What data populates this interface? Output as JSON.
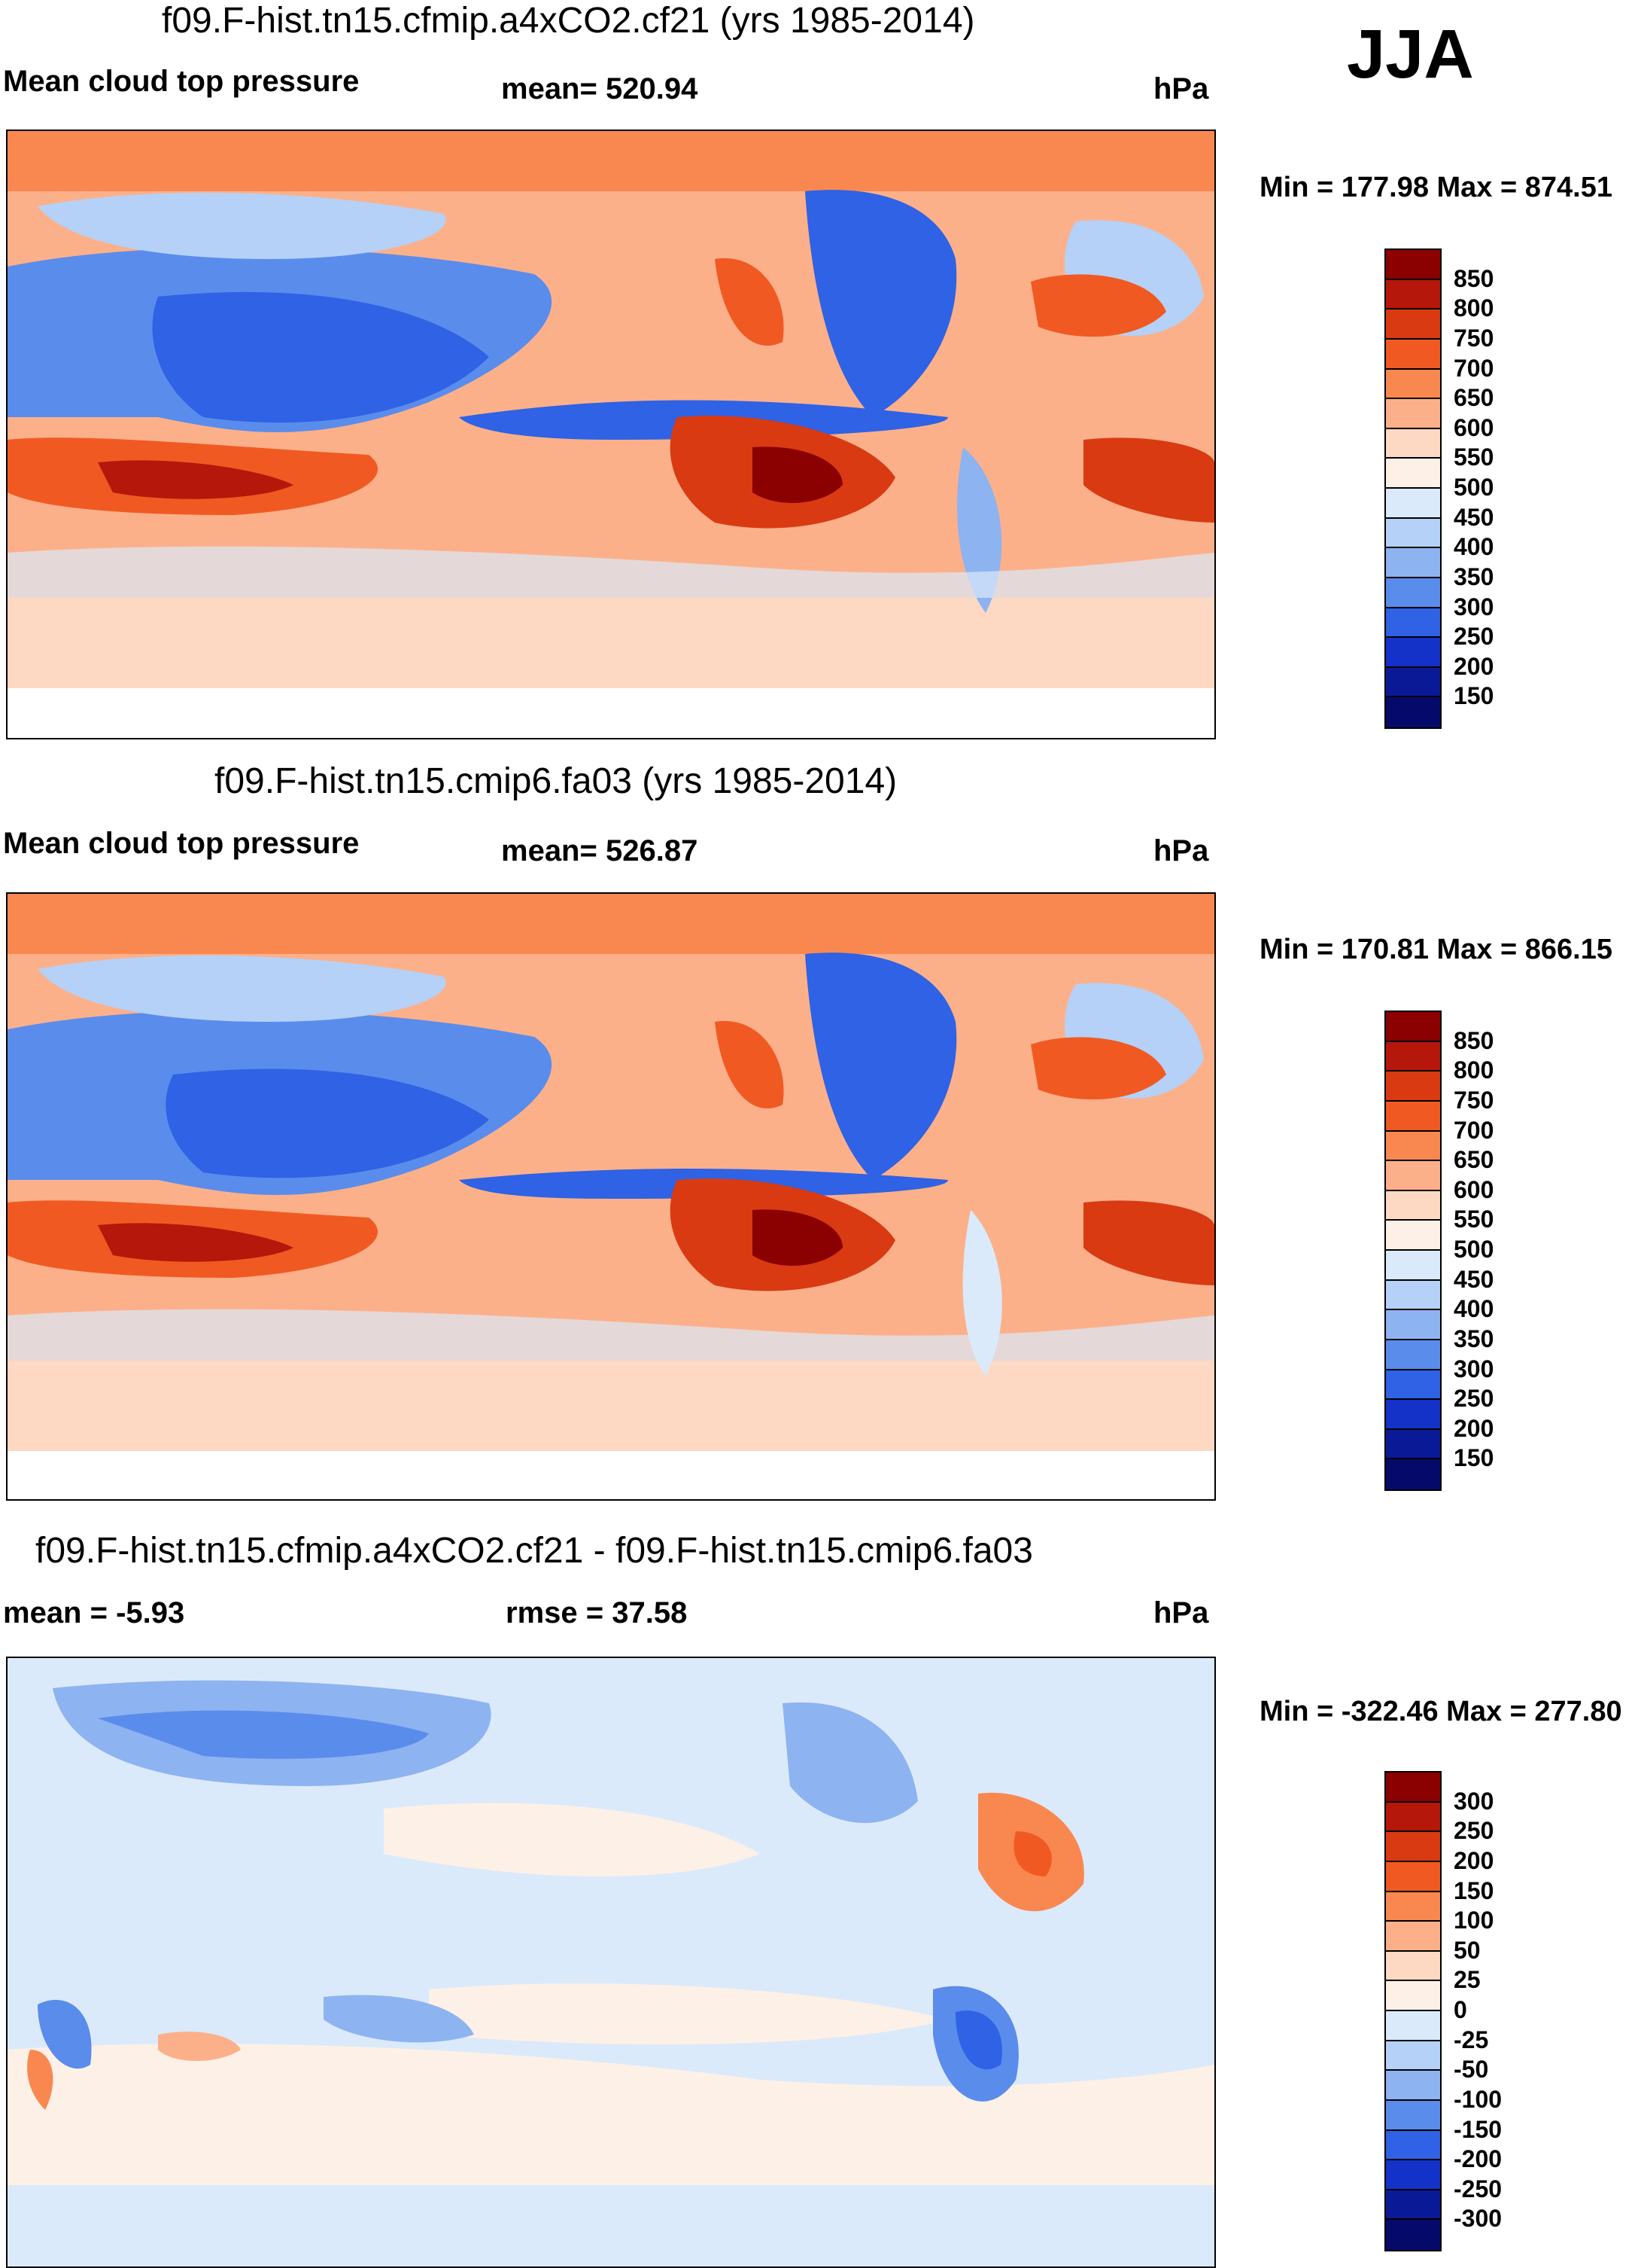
{
  "season": "JJA",
  "panels": [
    {
      "title": "f09.F-hist.tn15.cfmip.a4xCO2.cf21 (yrs 1985-2014)",
      "left": "Mean cloud top pressure",
      "center": "mean= 520.94",
      "units": "hPa",
      "minmax": "Min = 177.98 Max = 874.51",
      "legend": {
        "labels": [
          "850",
          "800",
          "750",
          "700",
          "650",
          "600",
          "550",
          "500",
          "450",
          "400",
          "350",
          "300",
          "250",
          "200",
          "150"
        ],
        "colors": [
          "#8b0000",
          "#b5170a",
          "#d93a12",
          "#f05a22",
          "#f98850",
          "#fcb08a",
          "#fdd8c2",
          "#fdf0e6",
          "#dbeafb",
          "#b5d1f7",
          "#8db3f1",
          "#5a8cec",
          "#2f62e4",
          "#1432c8",
          "#0a1a96",
          "#050a6a"
        ]
      }
    },
    {
      "title": "f09.F-hist.tn15.cmip6.fa03 (yrs 1985-2014)",
      "left": "Mean cloud top pressure",
      "center": "mean= 526.87",
      "units": "hPa",
      "minmax": "Min = 170.81 Max = 866.15",
      "legend": {
        "labels": [
          "850",
          "800",
          "750",
          "700",
          "650",
          "600",
          "550",
          "500",
          "450",
          "400",
          "350",
          "300",
          "250",
          "200",
          "150"
        ],
        "colors": [
          "#8b0000",
          "#b5170a",
          "#d93a12",
          "#f05a22",
          "#f98850",
          "#fcb08a",
          "#fdd8c2",
          "#fdf0e6",
          "#dbeafb",
          "#b5d1f7",
          "#8db3f1",
          "#5a8cec",
          "#2f62e4",
          "#1432c8",
          "#0a1a96",
          "#050a6a"
        ]
      }
    },
    {
      "title": "f09.F-hist.tn15.cfmip.a4xCO2.cf21 - f09.F-hist.tn15.cmip6.fa03",
      "left": "mean =  -5.93",
      "center": "rmse =  37.58",
      "units": "hPa",
      "minmax": "Min = -322.46 Max = 277.80",
      "legend": {
        "labels": [
          "300",
          "250",
          "200",
          "150",
          "100",
          "50",
          "25",
          "0",
          "-25",
          "-50",
          "-100",
          "-150",
          "-200",
          "-250",
          "-300"
        ],
        "colors": [
          "#8b0000",
          "#b5170a",
          "#d93a12",
          "#f05a22",
          "#f98850",
          "#fcb08a",
          "#fdd8c2",
          "#fdf0e6",
          "#dbeafb",
          "#b5d1f7",
          "#8db3f1",
          "#5a8cec",
          "#2f62e4",
          "#1432c8",
          "#0a1a96",
          "#050a6a"
        ]
      }
    }
  ]
}
